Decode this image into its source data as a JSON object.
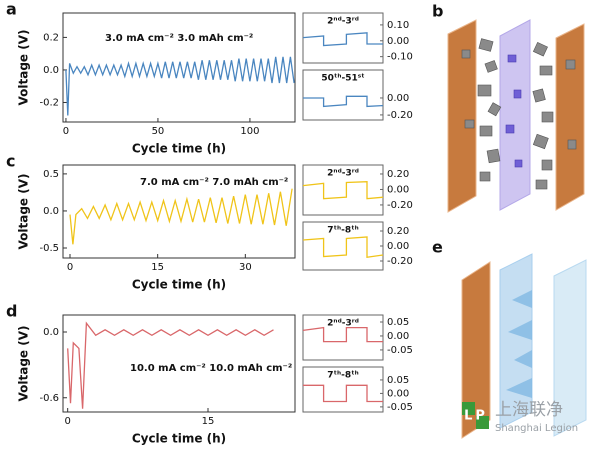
{
  "chart_data": [
    {
      "type": "line",
      "panel": "a",
      "ylabel": "Voltage (V)",
      "xlabel": "Cycle time (h)",
      "annotation": "3.0 mA cm⁻²  3.0 mAh cm⁻²",
      "color": "#4a86c0",
      "xlim": [
        -1.6,
        124.5
      ],
      "ylim": [
        -0.32,
        0.35
      ],
      "xticks": [
        0,
        50,
        100
      ],
      "yticks": [
        0.2,
        {
          "value": 0,
          "label": "0.0"
        },
        -0.2
      ],
      "x": [
        0,
        1,
        2,
        4,
        6,
        8,
        10,
        12,
        14,
        16,
        18,
        20,
        22,
        24,
        26,
        28,
        30,
        32,
        34,
        36,
        38,
        40,
        42,
        44,
        46,
        48,
        50,
        52,
        54,
        56,
        58,
        60,
        62,
        64,
        66,
        68,
        70,
        72,
        74,
        76,
        78,
        80,
        82,
        84,
        86,
        88,
        90,
        92,
        94,
        96,
        98,
        100,
        102,
        104,
        106,
        108,
        110,
        112,
        114,
        116,
        118,
        120,
        122,
        124
      ],
      "values": [
        0,
        -0.28,
        0.04,
        -0.02,
        0.02,
        -0.02,
        0.02,
        -0.03,
        0.03,
        -0.03,
        0.03,
        -0.03,
        0.03,
        -0.03,
        0.03,
        -0.03,
        0.03,
        -0.04,
        0.04,
        -0.04,
        0.04,
        -0.04,
        0.04,
        -0.04,
        0.04,
        -0.04,
        0.04,
        -0.05,
        0.05,
        -0.05,
        0.05,
        -0.05,
        0.05,
        -0.05,
        0.05,
        -0.05,
        0.05,
        -0.06,
        0.06,
        -0.06,
        0.06,
        -0.06,
        0.06,
        -0.06,
        0.06,
        -0.06,
        0.06,
        -0.07,
        0.07,
        -0.07,
        0.07,
        -0.07,
        0.07,
        -0.07,
        0.07,
        -0.07,
        0.07,
        -0.08,
        0.08,
        -0.08,
        0.08,
        -0.08,
        0.08,
        -0.08
      ]
    },
    {
      "type": "line",
      "annotation": "2ⁿᵈ-3ʳᵈ",
      "color": "#4a86c0",
      "xlim": [
        0,
        3.5
      ],
      "ylim": [
        -0.14,
        0.175
      ],
      "yticks": [
        {
          "value": 0.1,
          "label": "0.10"
        },
        {
          "value": 0,
          "label": "0.00"
        },
        {
          "value": -0.1,
          "label": "-0.10"
        }
      ],
      "x": [
        0,
        0.9,
        0.9,
        1.9,
        1.9,
        2.8,
        2.8,
        3.5
      ],
      "values": [
        0.02,
        0.03,
        -0.03,
        -0.02,
        0.04,
        0.05,
        -0.02,
        -0.02
      ]
    },
    {
      "type": "line",
      "annotation": "50ᵗʰ-51ˢᵗ",
      "color": "#4a86c0",
      "xlim": [
        0,
        3.5
      ],
      "ylim": [
        -0.26,
        0.33
      ],
      "yticks": [
        {
          "value": 0,
          "label": "0.00"
        },
        {
          "value": -0.2,
          "label": "-0.20"
        }
      ],
      "x": [
        0,
        0.9,
        0.9,
        1.9,
        1.9,
        2.8,
        2.8,
        3.5
      ],
      "values": [
        0.0,
        0.0,
        -0.1,
        -0.08,
        0.02,
        0.02,
        -0.1,
        -0.09
      ]
    },
    {
      "type": "line",
      "panel": "c",
      "ylabel": "Voltage (V)",
      "xlabel": "Cycle time (h)",
      "annotation": "7.0 mA cm⁻²  7.0 mAh cm⁻²",
      "color": "#f0c419",
      "xlim": [
        -1.2,
        38.5
      ],
      "ylim": [
        -0.635,
        0.62
      ],
      "xticks": [
        0,
        15,
        30
      ],
      "yticks": [
        0.5,
        {
          "value": 0,
          "label": "0.0"
        },
        -0.5
      ],
      "x": [
        0,
        0.5,
        1,
        2,
        3,
        4,
        5,
        6,
        7,
        8,
        9,
        10,
        11,
        12,
        13,
        14,
        15,
        16,
        17,
        18,
        19,
        20,
        21,
        22,
        23,
        24,
        25,
        26,
        27,
        28,
        29,
        30,
        31,
        32,
        33,
        34,
        35,
        36,
        37,
        38
      ],
      "values": [
        -0.05,
        -0.45,
        -0.05,
        0.03,
        -0.1,
        0.06,
        -0.1,
        0.08,
        -0.12,
        0.1,
        -0.12,
        0.1,
        -0.12,
        0.12,
        -0.13,
        0.12,
        -0.13,
        0.14,
        -0.14,
        0.14,
        -0.14,
        0.16,
        -0.15,
        0.16,
        -0.15,
        0.18,
        -0.16,
        0.18,
        -0.17,
        0.2,
        -0.17,
        0.22,
        -0.18,
        0.22,
        -0.18,
        0.24,
        -0.19,
        0.26,
        -0.2,
        0.3
      ]
    },
    {
      "type": "line",
      "annotation": "2ⁿᵈ-3ʳᵈ",
      "color": "#f0c419",
      "xlim": [
        0,
        3.5
      ],
      "ylim": [
        -0.33,
        0.316
      ],
      "yticks": [
        {
          "value": 0.2,
          "label": "0.20"
        },
        {
          "value": 0,
          "label": "0.00"
        },
        {
          "value": -0.2,
          "label": "-0.20"
        }
      ],
      "x": [
        0,
        0.9,
        0.9,
        1.9,
        1.9,
        2.8,
        2.8,
        3.5
      ],
      "values": [
        0.05,
        0.08,
        -0.12,
        -0.1,
        0.09,
        0.1,
        -0.12,
        -0.1
      ]
    },
    {
      "type": "line",
      "annotation": "7ᵗʰ-8ᵗʰ",
      "color": "#f0c419",
      "xlim": [
        0,
        3.5
      ],
      "ylim": [
        -0.32,
        0.32
      ],
      "yticks": [
        {
          "value": 0.2,
          "label": "0.20"
        },
        {
          "value": 0,
          "label": "0.00"
        },
        {
          "value": -0.2,
          "label": "-0.20"
        }
      ],
      "x": [
        0,
        0.9,
        0.9,
        1.9,
        1.9,
        2.8,
        2.8,
        3.5
      ],
      "values": [
        0.08,
        0.1,
        -0.14,
        -0.12,
        0.1,
        0.12,
        -0.15,
        -0.12
      ]
    },
    {
      "type": "line",
      "panel": "d",
      "ylabel": "Voltage (V)",
      "xlabel": "Cycle time (h)",
      "annotation": "10.0 mA cm⁻²  10.0 mAh cm⁻²",
      "color": "#d9676a",
      "xlim": [
        -0.5,
        24.3
      ],
      "ylim": [
        -0.73,
        0.155
      ],
      "xticks": [
        0,
        15
      ],
      "yticks": [
        {
          "value": 0,
          "label": "0.0"
        },
        -0.6
      ],
      "x": [
        0,
        0.3,
        0.6,
        1.2,
        1.6,
        2,
        3,
        4,
        5,
        6,
        7,
        8,
        9,
        10,
        11,
        12,
        13,
        14,
        15,
        16,
        17,
        18,
        19,
        20,
        21,
        22
      ],
      "values": [
        -0.15,
        -0.65,
        -0.1,
        -0.15,
        -0.7,
        0.08,
        -0.03,
        0.02,
        -0.03,
        0.02,
        -0.03,
        0.02,
        -0.03,
        0.02,
        -0.03,
        0.02,
        -0.03,
        0.02,
        -0.03,
        0.02,
        -0.03,
        0.02,
        -0.03,
        0.02,
        -0.03,
        0.02
      ]
    },
    {
      "type": "line",
      "annotation": "2ⁿᵈ-3ʳᵈ",
      "color": "#d9676a",
      "xlim": [
        0,
        3.5
      ],
      "ylim": [
        -0.086,
        0.075
      ],
      "yticks": [
        {
          "value": 0.05,
          "label": "0.05"
        },
        {
          "value": 0,
          "label": "0.00"
        },
        {
          "value": -0.05,
          "label": "-0.05"
        }
      ],
      "x": [
        0,
        0.9,
        0.9,
        1.9,
        1.9,
        2.8,
        2.8,
        3.5
      ],
      "values": [
        0.02,
        0.03,
        -0.02,
        -0.02,
        0.03,
        0.03,
        -0.02,
        -0.02
      ]
    },
    {
      "type": "line",
      "annotation": "7ᵗʰ-8ᵗʰ",
      "color": "#d9676a",
      "xlim": [
        0,
        3.5
      ],
      "ylim": [
        -0.069,
        0.098
      ],
      "yticks": [
        {
          "value": 0.05,
          "label": "0.05"
        },
        {
          "value": 0,
          "label": "0.00"
        },
        {
          "value": -0.05,
          "label": "-0.05"
        }
      ],
      "x": [
        0,
        0.9,
        0.9,
        1.9,
        1.9,
        2.8,
        2.8,
        3.5
      ],
      "values": [
        0.03,
        0.03,
        -0.03,
        -0.03,
        0.03,
        0.03,
        -0.03,
        -0.03
      ]
    }
  ],
  "illustrations": [
    {
      "panel": "b"
    },
    {
      "panel": "e"
    }
  ],
  "watermark": {
    "logo": "LP",
    "text": "上海联净",
    "subtext": "Shanghai Legion"
  }
}
